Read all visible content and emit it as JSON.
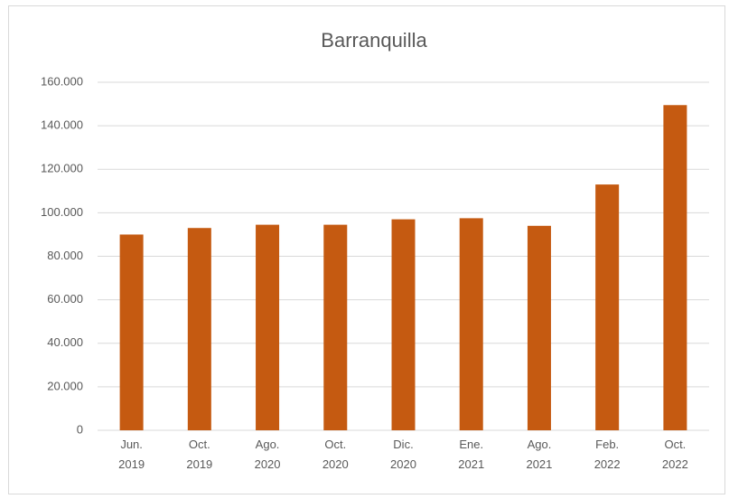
{
  "chart_data": {
    "type": "bar",
    "title": "Barranquilla",
    "categories": [
      "Jun. 2019",
      "Oct. 2019",
      "Ago. 2020",
      "Oct. 2020",
      "Dic. 2020",
      "Ene. 2021",
      "Ago. 2021",
      "Feb. 2022",
      "Oct. 2022"
    ],
    "values": [
      90000,
      93000,
      94500,
      94500,
      97000,
      97500,
      94000,
      113000,
      149500
    ],
    "color": "#c55a11",
    "ylim": [
      0,
      160000
    ],
    "yticks": [
      0,
      {
        "value": 20000,
        "label": "20.000"
      },
      {
        "value": 40000,
        "label": "40.000"
      },
      {
        "value": 60000,
        "label": "60.000"
      },
      {
        "value": 80000,
        "label": "80.000"
      },
      {
        "value": 100000,
        "label": "100.000"
      },
      {
        "value": 120000,
        "label": "120.000"
      },
      {
        "value": 140000,
        "label": "140.000"
      },
      {
        "value": 160000,
        "label": "160.000"
      }
    ],
    "grid": true
  }
}
